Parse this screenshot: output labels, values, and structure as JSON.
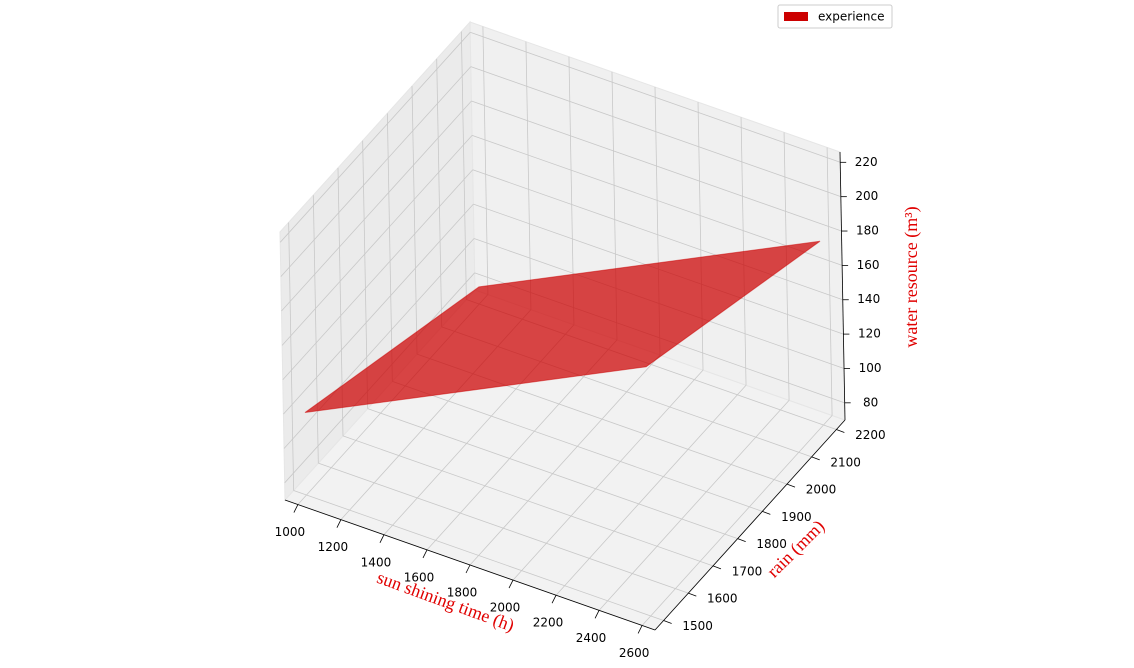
{
  "chart_data": {
    "type": "surface",
    "xlabel": "sun shining time (h)",
    "ylabel": "rain (mm)",
    "zlabel": "water resource (m³)",
    "x": [
      1000,
      2600
    ],
    "y": [
      1500,
      2200
    ],
    "series": [
      {
        "name": "experience",
        "color": "#cc0000",
        "z": [
          [
            118,
            80
          ],
          [
            215,
            177
          ]
        ]
      }
    ],
    "xlim": [
      940,
      2660
    ],
    "ylim": [
      1465,
      2235
    ],
    "zlim": [
      70,
      226
    ],
    "xticks": [
      1000,
      1200,
      1400,
      1600,
      1800,
      2000,
      2200,
      2400,
      2600
    ],
    "yticks": [
      1500,
      1600,
      1700,
      1800,
      1900,
      2000,
      2100,
      2200
    ],
    "zticks": [
      80,
      100,
      120,
      140,
      160,
      180,
      200,
      220
    ],
    "grid": true,
    "legend": "upper right"
  }
}
